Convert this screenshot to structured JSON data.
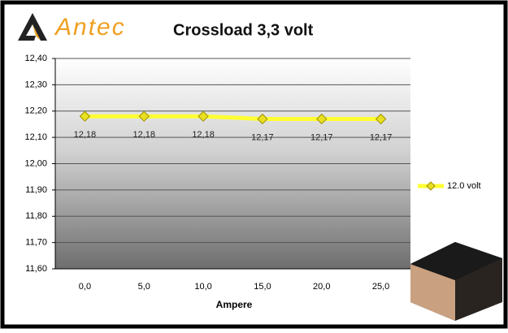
{
  "brand": "Antec",
  "chart_data": {
    "type": "line",
    "title": "Crossload 3,3 volt",
    "x_label": "Ampere",
    "categories": [
      "0,0",
      "5,0",
      "10,0",
      "15,0",
      "20,0",
      "25,0"
    ],
    "series": [
      {
        "name": "12.0 volt",
        "color": "#ffff33",
        "values": [
          12.18,
          12.18,
          12.18,
          12.17,
          12.17,
          12.17
        ],
        "value_labels": [
          "12,18",
          "12,18",
          "12,18",
          "12,17",
          "12,17",
          "12,17"
        ]
      }
    ],
    "ylim": [
      11.6,
      12.4
    ],
    "yticks": [
      {
        "value": 11.6,
        "label": "11,60"
      },
      {
        "value": 11.7,
        "label": "11,70"
      },
      {
        "value": 11.8,
        "label": "11,80"
      },
      {
        "value": 11.9,
        "label": "11,90"
      },
      {
        "value": 12.0,
        "label": "12,00"
      },
      {
        "value": 12.1,
        "label": "12,10"
      },
      {
        "value": 12.2,
        "label": "12,20"
      },
      {
        "value": 12.3,
        "label": "12,30"
      },
      {
        "value": 12.4,
        "label": "12,40"
      }
    ],
    "grid": true,
    "legend": "right"
  }
}
